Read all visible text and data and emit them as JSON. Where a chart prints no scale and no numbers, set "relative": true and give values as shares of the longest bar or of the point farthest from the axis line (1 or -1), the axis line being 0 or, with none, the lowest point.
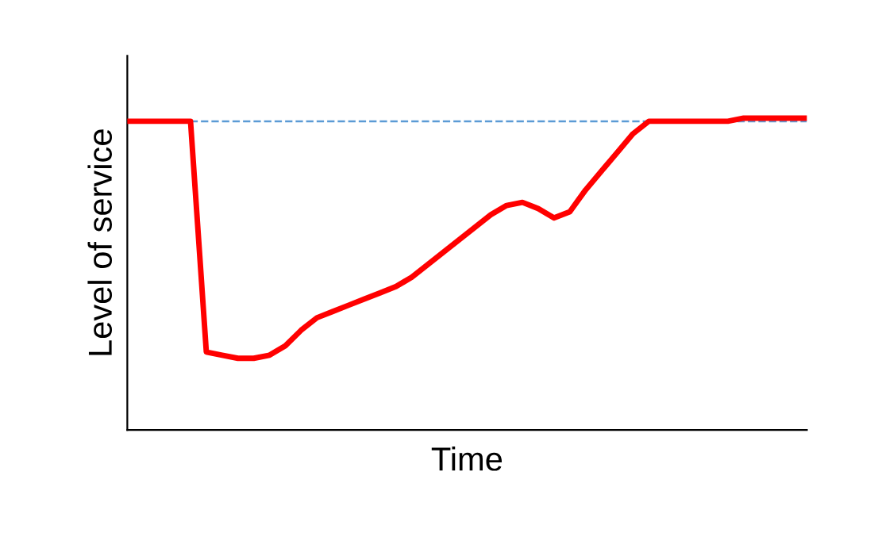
{
  "chart_data": {
    "type": "line",
    "relative": true,
    "xlabel": "Time",
    "ylabel": "Level of service",
    "categories": [
      null,
      null,
      null,
      null,
      null,
      null,
      null,
      null,
      null,
      null,
      null,
      null,
      null,
      null,
      null,
      null,
      null,
      null,
      null,
      null,
      null,
      null,
      null,
      null,
      null,
      null,
      null,
      null,
      null,
      null,
      null,
      null,
      null,
      null,
      null,
      null,
      null,
      null,
      null,
      null,
      null,
      null,
      null,
      null
    ],
    "series": [
      {
        "color": "#ff0000",
        "values": [
          0.99,
          0.99,
          0.99,
          0.99,
          0.99,
          0.25,
          0.24,
          0.23,
          0.23,
          0.24,
          0.27,
          0.32,
          0.36,
          0.38,
          0.4,
          0.42,
          0.44,
          0.46,
          0.49,
          0.53,
          0.57,
          0.61,
          0.65,
          0.69,
          0.72,
          0.73,
          0.71,
          0.68,
          0.7,
          0.77,
          0.83,
          0.89,
          0.95,
          0.99,
          0.99,
          0.99,
          0.99,
          0.99,
          0.99,
          1.0,
          1.0,
          1.0,
          1.0,
          1.0
        ]
      }
    ],
    "ref_lines": [
      {
        "axis": "y",
        "value": 0.99,
        "color": "#5b9bd5",
        "line_style": "dashed"
      }
    ],
    "grid": false,
    "legend": false,
    "marker": "none",
    "line_style": "solid"
  }
}
